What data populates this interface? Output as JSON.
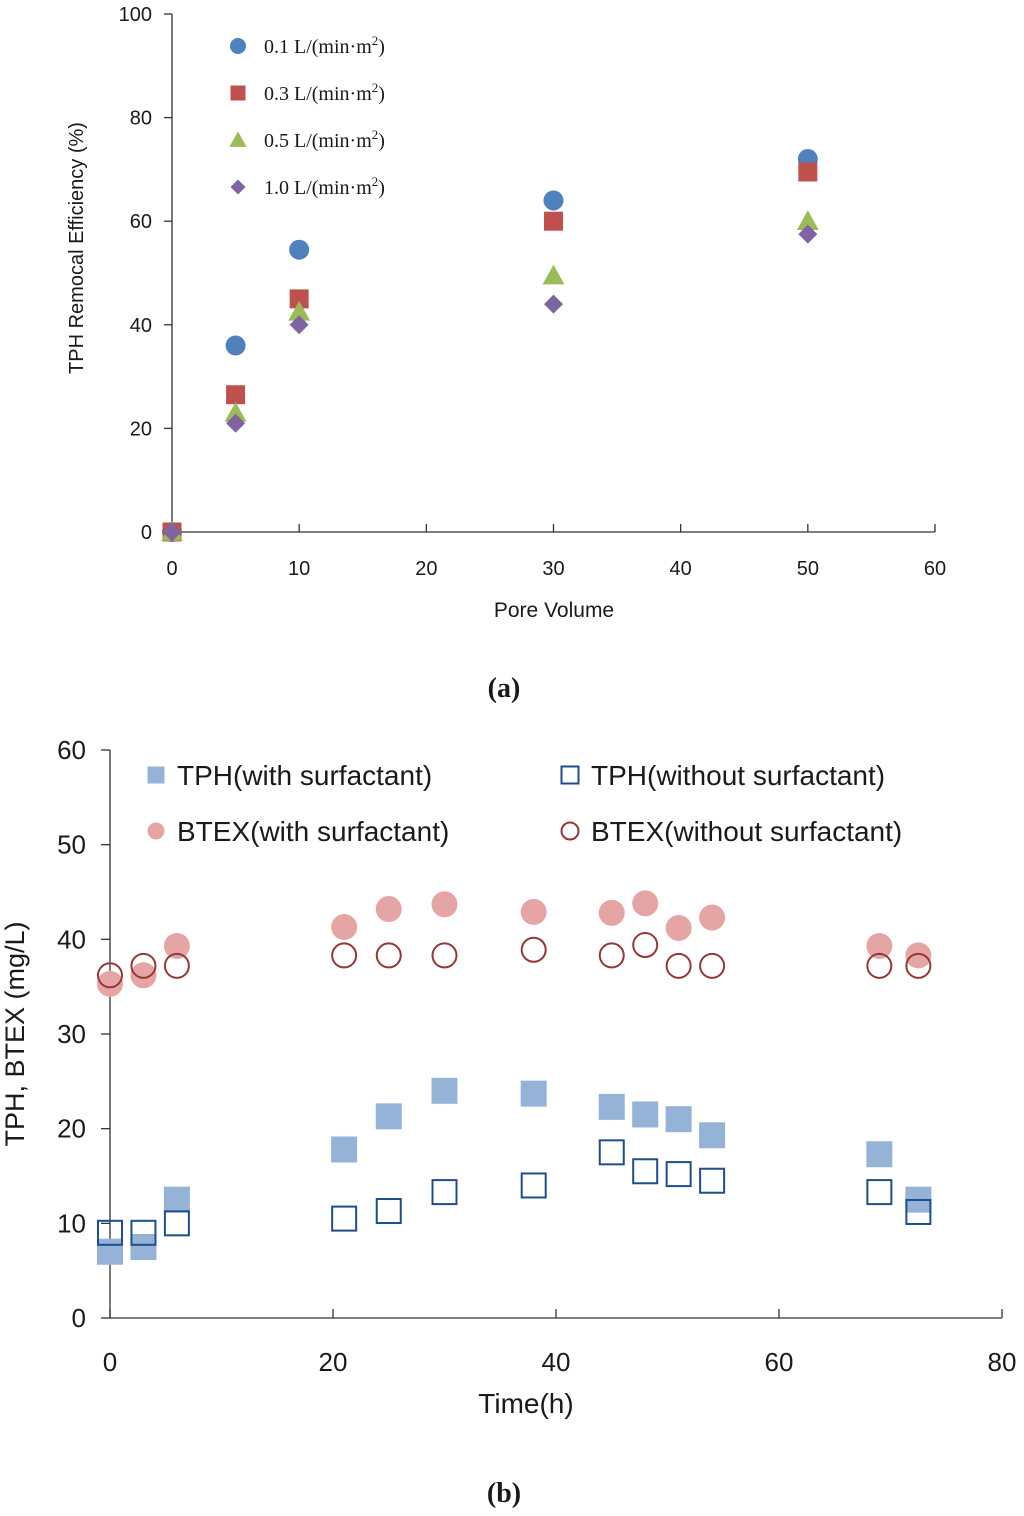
{
  "chart_data": [
    {
      "panel": "a",
      "caption": "(a)",
      "type": "scatter",
      "title": "",
      "xlabel": "Pore Volume",
      "ylabel": "TPH Remocal  Efficiency (%)",
      "xlim": [
        0,
        60
      ],
      "ylim": [
        0,
        100
      ],
      "xticks": [
        0,
        10,
        20,
        30,
        40,
        50,
        60
      ],
      "yticks": [
        0,
        20,
        40,
        60,
        80,
        100
      ],
      "grid": false,
      "legend_position": "top-left",
      "series": [
        {
          "name": "0.1 L/(min·m",
          "sup": "2",
          "close": ")",
          "marker": "circle",
          "color": "#4f81bd",
          "x": [
            0,
            5,
            10,
            30,
            50
          ],
          "y": [
            0,
            36,
            54.5,
            64,
            72
          ]
        },
        {
          "name": "0.3 L/(min·m",
          "sup": "2",
          "close": ")",
          "marker": "square",
          "color": "#c0504d",
          "x": [
            0,
            5,
            10,
            30,
            50
          ],
          "y": [
            0,
            26.5,
            45,
            60,
            69.5
          ]
        },
        {
          "name": "0.5 L/(min·m",
          "sup": "2",
          "close": ")",
          "marker": "triangle",
          "color": "#9bbb59",
          "x": [
            0,
            5,
            10,
            30,
            50
          ],
          "y": [
            0,
            23,
            42.5,
            49.5,
            60
          ]
        },
        {
          "name": "1.0 L/(min·m",
          "sup": "2",
          "close": ")",
          "marker": "diamond",
          "color": "#8064a2",
          "x": [
            0,
            5,
            10,
            30,
            50
          ],
          "y": [
            0,
            21,
            40,
            44,
            57.5
          ]
        }
      ]
    },
    {
      "panel": "b",
      "caption": "(b)",
      "type": "scatter",
      "title": "",
      "xlabel": "Time(h)",
      "ylabel": "TPH,  BTEX (mg/L)",
      "xlim": [
        0,
        80
      ],
      "ylim": [
        0,
        60
      ],
      "xticks": [
        0,
        20,
        40,
        60,
        80
      ],
      "yticks": [
        0,
        10,
        20,
        30,
        40,
        50,
        60
      ],
      "grid": false,
      "legend_position": "top",
      "series": [
        {
          "name": "TPH(with surfactant)",
          "marker": "square",
          "filled": true,
          "color": "#95b3d7",
          "x": [
            0,
            3,
            6,
            21,
            25,
            30,
            38,
            45,
            48,
            51,
            54,
            69,
            72.5
          ],
          "y": [
            7,
            7.5,
            12.5,
            17.8,
            21.3,
            24,
            23.7,
            22.3,
            21.5,
            21,
            19.3,
            17.3,
            12.5
          ]
        },
        {
          "name": "TPH(without surfactant)",
          "marker": "square",
          "filled": false,
          "color": "#1f4e8c",
          "x": [
            0,
            3,
            6,
            21,
            25,
            30,
            38,
            45,
            48,
            51,
            54,
            69,
            72.5
          ],
          "y": [
            9,
            9,
            10,
            10.5,
            11.3,
            13.3,
            14,
            17.5,
            15.5,
            15.2,
            14.5,
            13.3,
            11.2
          ]
        },
        {
          "name": "BTEX(with surfactant)",
          "marker": "circle",
          "filled": true,
          "color": "#e6a5a5",
          "x": [
            0,
            3,
            6,
            21,
            25,
            30,
            38,
            45,
            48,
            51,
            54,
            69,
            72.5
          ],
          "y": [
            35.3,
            36.2,
            39.3,
            41.3,
            43.2,
            43.7,
            42.9,
            42.8,
            43.8,
            41.2,
            42.3,
            39.3,
            38.3
          ]
        },
        {
          "name": "BTEX(without surfactant)",
          "marker": "circle",
          "filled": false,
          "color": "#953735",
          "x": [
            0,
            3,
            6,
            21,
            25,
            30,
            38,
            45,
            48,
            51,
            54,
            69,
            72.5
          ],
          "y": [
            36.2,
            37.2,
            37.2,
            38.3,
            38.3,
            38.3,
            38.9,
            38.3,
            39.4,
            37.2,
            37.2,
            37.2,
            37.2
          ]
        }
      ]
    }
  ]
}
